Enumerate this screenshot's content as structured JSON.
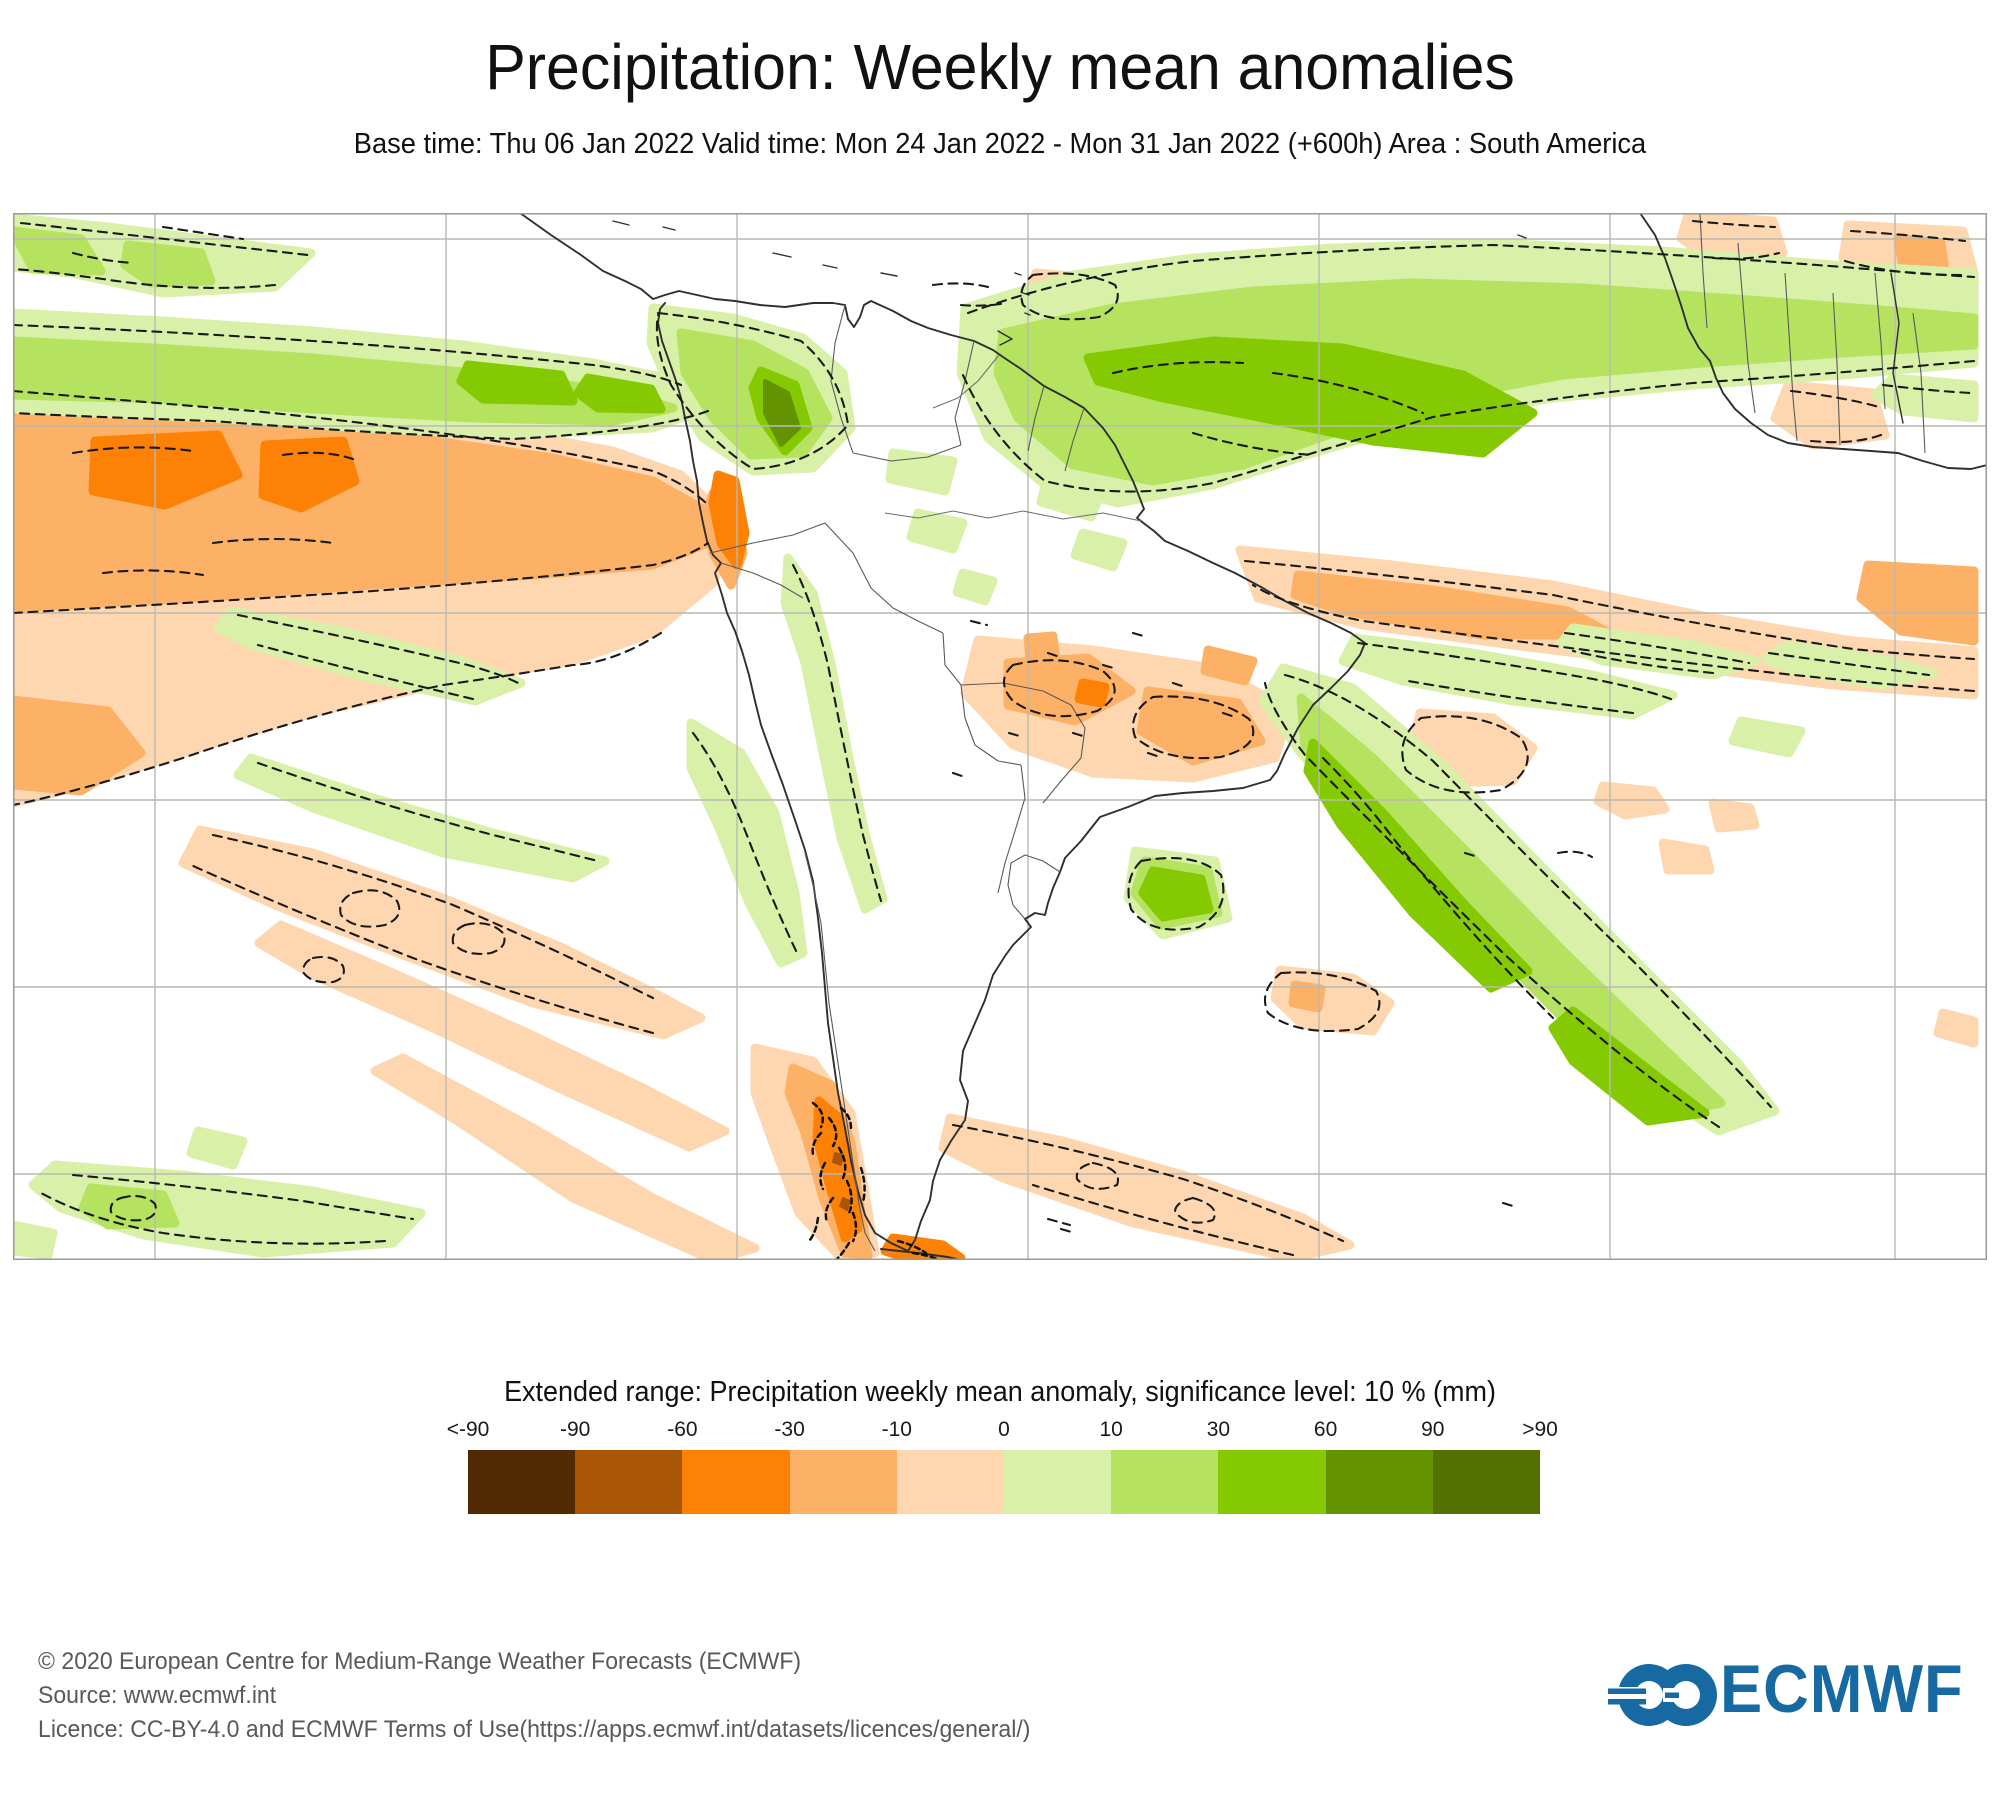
{
  "title": "Precipitation: Weekly mean anomalies",
  "subtitle": "Base time: Thu 06 Jan 2022 Valid time: Mon 24 Jan 2022 - Mon 31 Jan 2022 (+600h) Area : South America",
  "legend": {
    "title": "Extended range: Precipitation weekly mean anomaly, significance level: 10 % (mm)",
    "tick_labels": [
      "<-90",
      "-90",
      "-60",
      "-30",
      "-10",
      "0",
      "10",
      "30",
      "60",
      "90",
      ">90"
    ],
    "colors": [
      "#512a04",
      "#a85604",
      "#fc8105",
      "#fdb166",
      "#fed7b0",
      "#d9f0a9",
      "#b5e35f",
      "#85c902",
      "#649301",
      "#537000"
    ]
  },
  "map_style": {
    "grid_color": "#b9b9b2",
    "coastline_color": "#2f2f2f",
    "contour_color": "#1a1a1a"
  },
  "footer": {
    "copyright": "© 2020 European Centre for Medium-Range Weather Forecasts (ECMWF)",
    "source": "Source: www.ecmwf.int",
    "licence": "Licence: CC-BY-4.0 and ECMWF Terms of Use(https://apps.ecmwf.int/datasets/licences/general/)"
  },
  "logo": {
    "text": "ECMWF",
    "color": "#1769a2"
  }
}
